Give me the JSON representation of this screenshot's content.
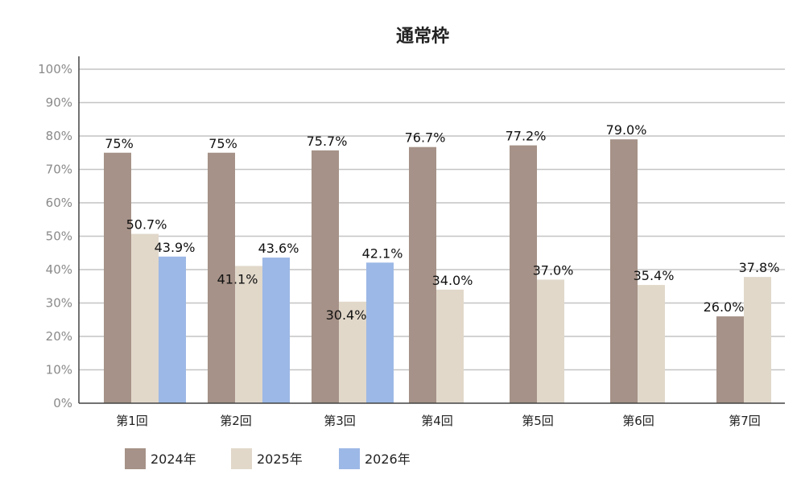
{
  "chart_data": {
    "type": "bar",
    "title": "通常枠",
    "xlabel": "",
    "ylabel": "",
    "ylim": [
      0,
      100
    ],
    "yticks": [
      "0%",
      "10%",
      "20%",
      "30%",
      "40%",
      "50%",
      "60%",
      "70%",
      "80%",
      "90%",
      "100%"
    ],
    "grid": true,
    "legend_position": "bottom-left",
    "categories": [
      "第1回",
      "第2回",
      "第3回",
      "第4回",
      "第5回",
      "第6回",
      "第7回"
    ],
    "series": [
      {
        "name": "2024年",
        "color": "#a69288",
        "label_color": "#111111",
        "values": [
          75,
          75,
          75.7,
          76.7,
          77.2,
          79.0,
          26.0
        ],
        "labels": [
          "75%",
          "75%",
          "75.7%",
          "76.7%",
          "77.2%",
          "79.0%",
          "26.0%"
        ]
      },
      {
        "name": "2025年",
        "color": "#e1d8ca",
        "label_color": "#111111",
        "values": [
          50.7,
          41.1,
          30.4,
          34.0,
          37.0,
          35.4,
          37.8
        ],
        "labels": [
          "50.7%",
          "41.1%",
          "30.4%",
          "34.0%",
          "37.0%",
          "35.4%",
          "37.8%"
        ]
      },
      {
        "name": "2026年",
        "color": "#9cb8e6",
        "label_color": "#1a1a55",
        "values": [
          43.9,
          43.6,
          42.1,
          null,
          null,
          null,
          null
        ],
        "labels": [
          "43.9%",
          "43.6%",
          "42.1%",
          null,
          null,
          null,
          null
        ]
      }
    ]
  }
}
